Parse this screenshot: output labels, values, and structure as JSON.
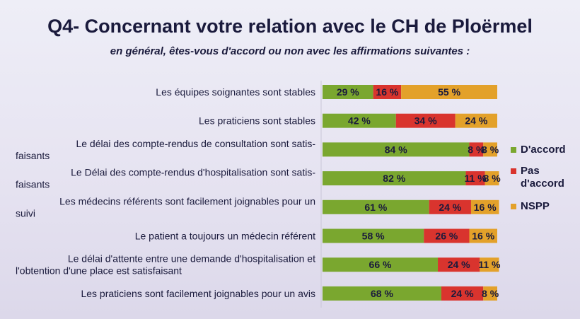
{
  "chart_data": {
    "type": "bar",
    "orientation": "horizontal",
    "stacked": true,
    "title": "Q4- Concernant votre relation avec le CH de Ploërmel",
    "subtitle": "en général, êtes-vous d'accord ou non avec les affirmations suivantes :",
    "categories": [
      [
        "Les équipes soignantes sont stables"
      ],
      [
        "Les praticiens sont stables"
      ],
      [
        "Le délai des compte-rendus de consultation sont satis-",
        "faisants"
      ],
      [
        "Le Délai des compte-rendus d'hospitalisation sont satis-",
        "faisants"
      ],
      [
        "Les médecins référents sont facilement joignables pour un",
        "suivi"
      ],
      [
        "Le patient a toujours un médecin référent"
      ],
      [
        "Le délai d'attente entre une demande d'hospitalisation et",
        "l'obtention d'une place est satisfaisant"
      ],
      [
        "Les praticiens sont facilement joignables pour un avis"
      ]
    ],
    "series": [
      {
        "name": "D'accord",
        "color": "#7aa72f",
        "values": [
          29,
          42,
          84,
          82,
          61,
          58,
          66,
          68
        ]
      },
      {
        "name": "Pas d'accord",
        "color": "#d9342e",
        "values": [
          16,
          34,
          8,
          11,
          24,
          26,
          24,
          24
        ]
      },
      {
        "name": "NSPP",
        "color": "#e3a12a",
        "values": [
          55,
          24,
          8,
          8,
          16,
          16,
          11,
          8
        ]
      }
    ],
    "value_labels": [
      [
        "29 %",
        "16 %",
        "55 %"
      ],
      [
        "42 %",
        "34 %",
        "24 %"
      ],
      [
        "84 %",
        "8 %",
        "8 %"
      ],
      [
        "82 %",
        "11 %",
        "8 %"
      ],
      [
        "61 %",
        "24 %",
        "16 %"
      ],
      [
        "58 %",
        "26 %",
        "16 %"
      ],
      [
        "66 %",
        "24 %",
        "11 %"
      ],
      [
        "68 %",
        "24 %",
        "8 %"
      ]
    ],
    "legend": {
      "position": "right",
      "items": [
        [
          "D'accord"
        ],
        [
          "Pas",
          "d'accord"
        ],
        [
          "NSPP"
        ]
      ]
    },
    "xlim": [
      0,
      100
    ],
    "grid": false
  }
}
